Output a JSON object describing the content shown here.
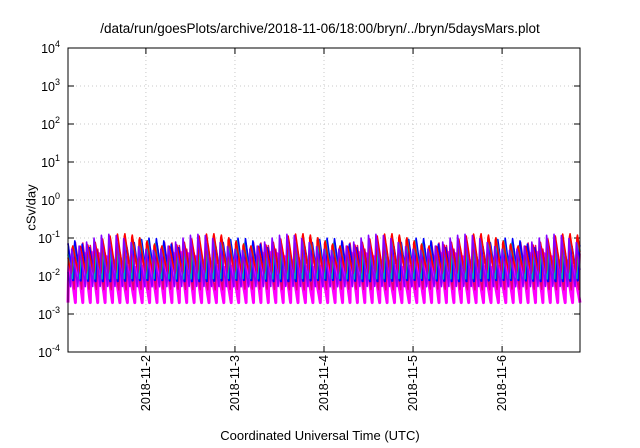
{
  "chart_data": {
    "type": "line",
    "title": "/data/run/goesPlots/archive/2018-11-06/18:00/bryn/../bryn/5daysMars.plot",
    "xlabel": "Coordinated Universal Time (UTC)",
    "ylabel": "cSv/day",
    "yscale": "log",
    "ylim": [
      0.0001,
      10000
    ],
    "xlim": [
      "2018-11-01T03:00",
      "2018-11-06T21:00"
    ],
    "yticks": [
      {
        "base": "10",
        "exp": "-4"
      },
      {
        "base": "10",
        "exp": "-3"
      },
      {
        "base": "10",
        "exp": "-2"
      },
      {
        "base": "10",
        "exp": "-1"
      },
      {
        "base": "10",
        "exp": "0"
      },
      {
        "base": "10",
        "exp": "1"
      },
      {
        "base": "10",
        "exp": "2"
      },
      {
        "base": "10",
        "exp": "3"
      },
      {
        "base": "10",
        "exp": "4"
      }
    ],
    "xticks": [
      "2018-11-2",
      "2018-11-3",
      "2018-11-4",
      "2018-11-5",
      "2018-11-6"
    ],
    "grid": true,
    "legend": "none",
    "pattern": "sawtooth, period ~2 h, rising from ~0.003 to ~0.15 cSv/day",
    "series": [
      {
        "color": "#ff00ff",
        "lo": 0.002,
        "hi": 0.05
      },
      {
        "color": "#e0007a",
        "lo": 0.004,
        "hi": 0.08
      },
      {
        "color": "#0000ff",
        "lo": 0.006,
        "hi": 0.12
      },
      {
        "color": "#00b0b0",
        "lo": 0.008,
        "hi": 0.1
      },
      {
        "color": "#ff0000",
        "lo": 0.01,
        "hi": 0.16
      },
      {
        "color": "#8800ff",
        "lo": 0.005,
        "hi": 0.14
      }
    ]
  }
}
